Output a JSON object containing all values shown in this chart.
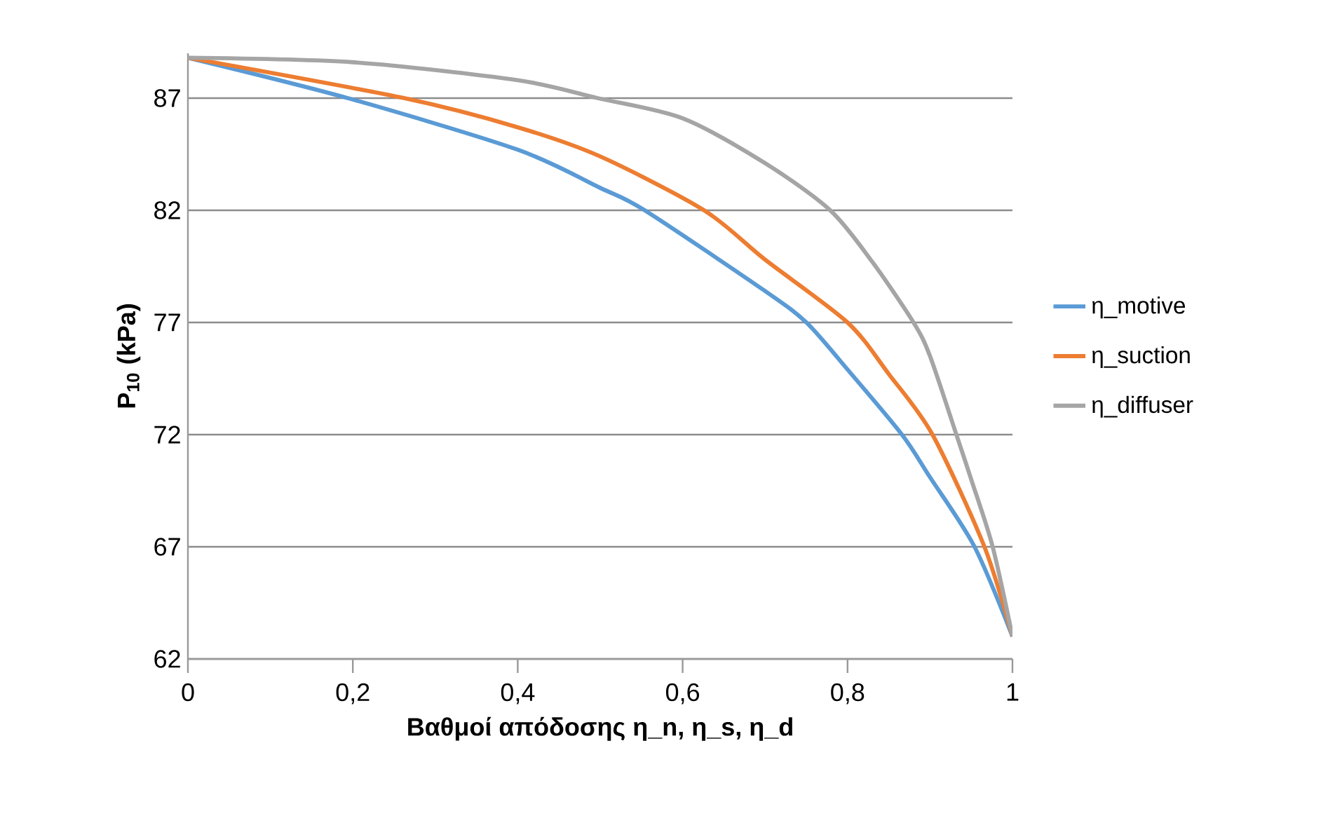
{
  "chart_data": {
    "type": "line",
    "xlabel": "Βαθμοί απόδοσης η_n, η_s, η_d",
    "ylabel": "P$_{10}$ (kPa)",
    "xlim": [
      0,
      1
    ],
    "ylim": [
      62,
      89
    ],
    "xticks": [
      0,
      {
        "value": 0.2,
        "label": "0,2"
      },
      {
        "value": 0.4,
        "label": "0,4"
      },
      {
        "value": 0.6,
        "label": "0,6"
      },
      {
        "value": 0.8,
        "label": "0,8"
      },
      1
    ],
    "yticks": [
      62,
      67,
      72,
      77,
      82,
      87
    ],
    "grid": "y",
    "legend": "right",
    "marker": "none",
    "line_style": "solid",
    "series": [
      {
        "name": "η_motive",
        "color": "#5b9bd5",
        "x": [
          0,
          0.194,
          0.4,
          0.5,
          0.554,
          0.7,
          0.75,
          0.8,
          0.866,
          0.9,
          0.954,
          1
        ],
        "values": [
          88.8,
          87,
          84.7,
          83.0,
          82,
          78.4,
          77,
          74.9,
          72,
          70.1,
          67,
          63
        ]
      },
      {
        "name": "η_suction",
        "color": "#ed7d31",
        "x": [
          0,
          0.262,
          0.4,
          0.5,
          0.626,
          0.7,
          0.8,
          0.85,
          0.903,
          0.966,
          1
        ],
        "values": [
          88.8,
          87,
          85.7,
          84.4,
          82,
          79.8,
          77,
          74.7,
          72,
          67,
          63
        ]
      },
      {
        "name": "η_diffuser",
        "color": "#a5a5a5",
        "x": [
          0,
          0.2,
          0.4,
          0.497,
          0.6,
          0.7,
          0.779,
          0.83,
          0.88,
          0.9,
          0.932,
          0.95,
          0.976,
          1
        ],
        "values": [
          88.8,
          88.6,
          87.8,
          87,
          86.1,
          84.1,
          82,
          79.7,
          77,
          75.5,
          72,
          70.0,
          67,
          63
        ]
      }
    ]
  }
}
